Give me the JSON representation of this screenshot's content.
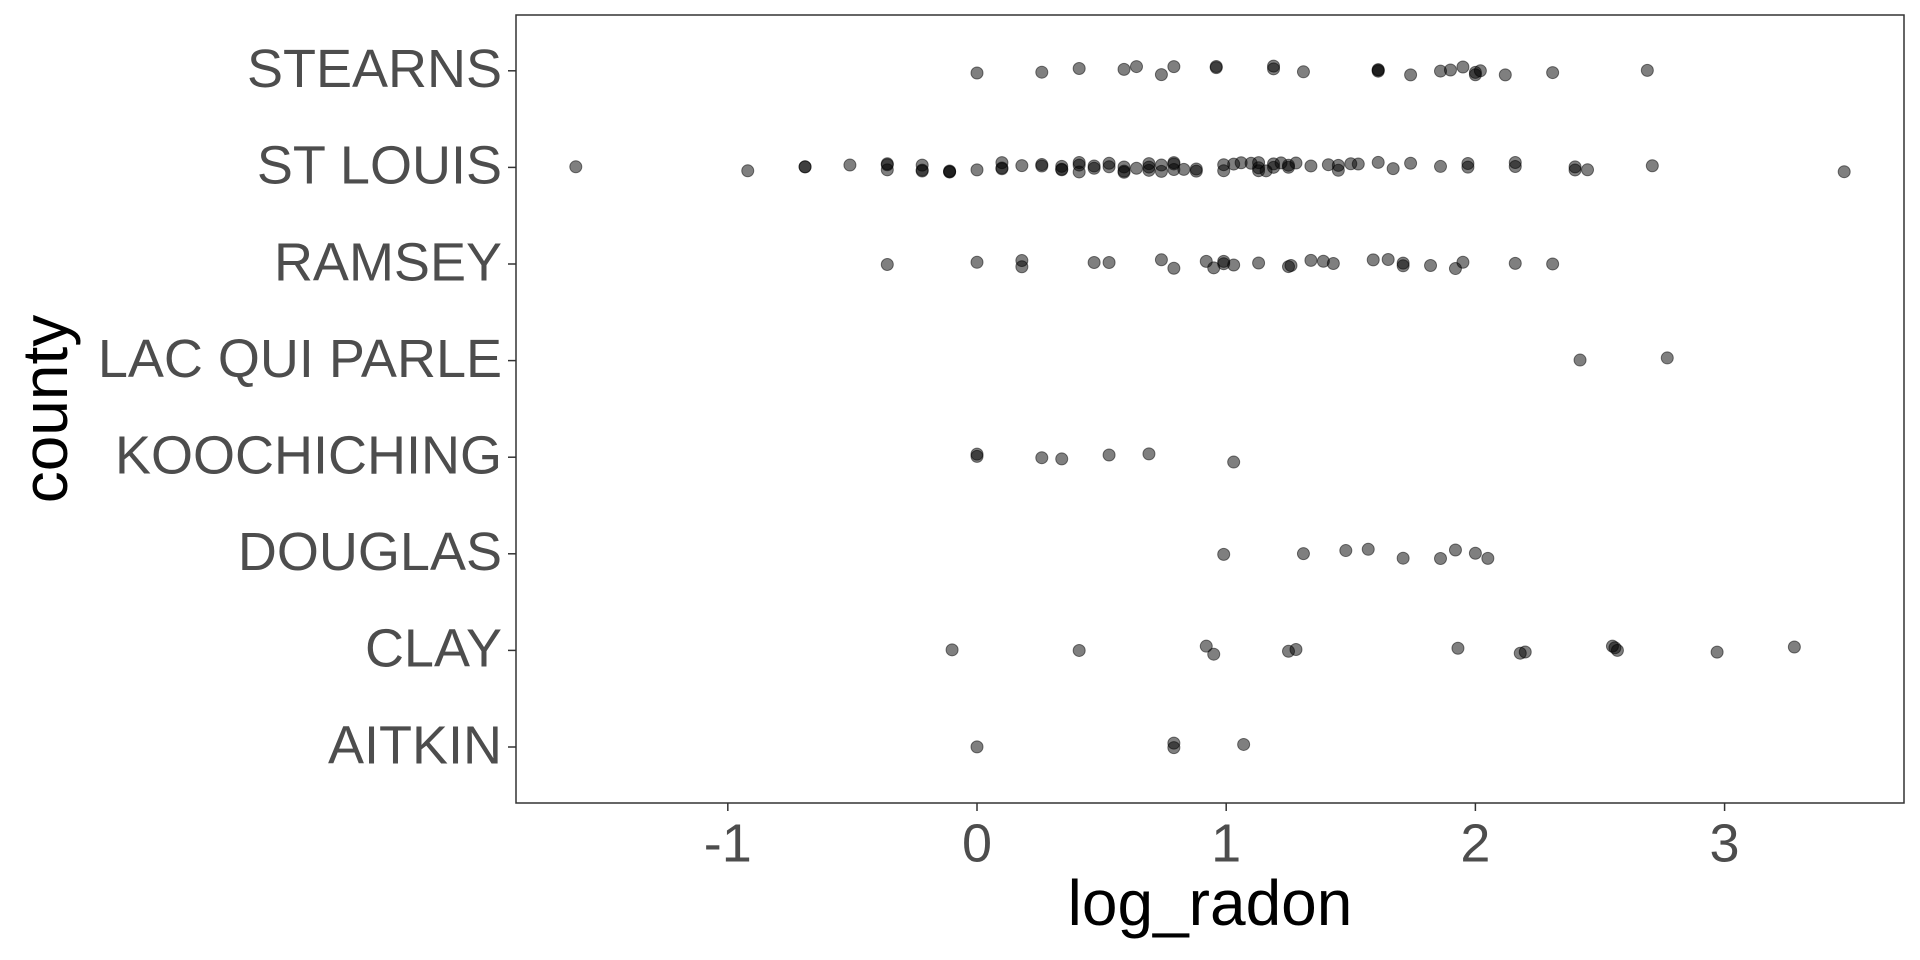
{
  "chart_data": {
    "type": "strip",
    "xlabel": "log_radon",
    "ylabel": "county",
    "categories": [
      "AITKIN",
      "CLAY",
      "DOUGLAS",
      "KOOCHICHING",
      "LAC QUI PARLE",
      "RAMSEY",
      "ST LOUIS",
      "STEARNS"
    ],
    "values": [
      [
        0,
        0.79,
        0.79,
        1.07
      ],
      [
        -0.1,
        0.41,
        0.92,
        0.95,
        1.25,
        1.28,
        1.93,
        2.18,
        2.2,
        2.55,
        2.57,
        2.56,
        2.97,
        3.28
      ],
      [
        0.99,
        1.31,
        1.48,
        1.57,
        1.71,
        1.86,
        1.92,
        2.0,
        2.05
      ],
      [
        0,
        0,
        0.26,
        0.34,
        0.53,
        0.69,
        1.03
      ],
      [
        2.42,
        2.77
      ],
      [
        -0.36,
        0,
        0.18,
        0.18,
        0.47,
        0.53,
        0.74,
        0.79,
        0.92,
        0.95,
        0.99,
        0.99,
        1.03,
        1.13,
        1.25,
        1.26,
        1.34,
        1.39,
        1.43,
        1.59,
        1.65,
        1.71,
        1.71,
        1.82,
        1.92,
        1.95,
        2.16,
        2.31
      ],
      [
        -1.61,
        -0.92,
        -0.69,
        -0.69,
        -0.51,
        -0.36,
        -0.36,
        -0.36,
        -0.22,
        -0.22,
        -0.22,
        -0.11,
        -0.11,
        -0.11,
        0,
        0.1,
        0.1,
        0.1,
        0.18,
        0.26,
        0.26,
        0.34,
        0.34,
        0.34,
        0.41,
        0.41,
        0.41,
        0.47,
        0.47,
        0.53,
        0.53,
        0.59,
        0.59,
        0.59,
        0.64,
        0.69,
        0.69,
        0.69,
        0.74,
        0.74,
        0.79,
        0.79,
        0.79,
        0.83,
        0.88,
        0.88,
        0.99,
        0.99,
        1.03,
        1.06,
        1.1,
        1.13,
        1.13,
        1.13,
        1.16,
        1.19,
        1.19,
        1.22,
        1.25,
        1.25,
        1.28,
        1.34,
        1.41,
        1.45,
        1.45,
        1.5,
        1.53,
        1.61,
        1.67,
        1.74,
        1.86,
        1.97,
        1.97,
        2.16,
        2.16,
        2.4,
        2.4,
        2.45,
        2.71,
        3.48
      ],
      [
        0,
        0.26,
        0.41,
        0.59,
        0.64,
        0.74,
        0.79,
        0.96,
        0.96,
        1.19,
        1.19,
        1.31,
        1.61,
        1.61,
        1.61,
        1.74,
        1.86,
        1.9,
        1.95,
        2.0,
        2.0,
        2.02,
        2.12,
        2.31,
        2.69
      ]
    ],
    "color": "#000000",
    "alpha": 0.5,
    "xlim": [
      -1.85,
      3.72
    ],
    "xticks": [
      -1,
      0,
      1,
      2,
      3
    ]
  }
}
